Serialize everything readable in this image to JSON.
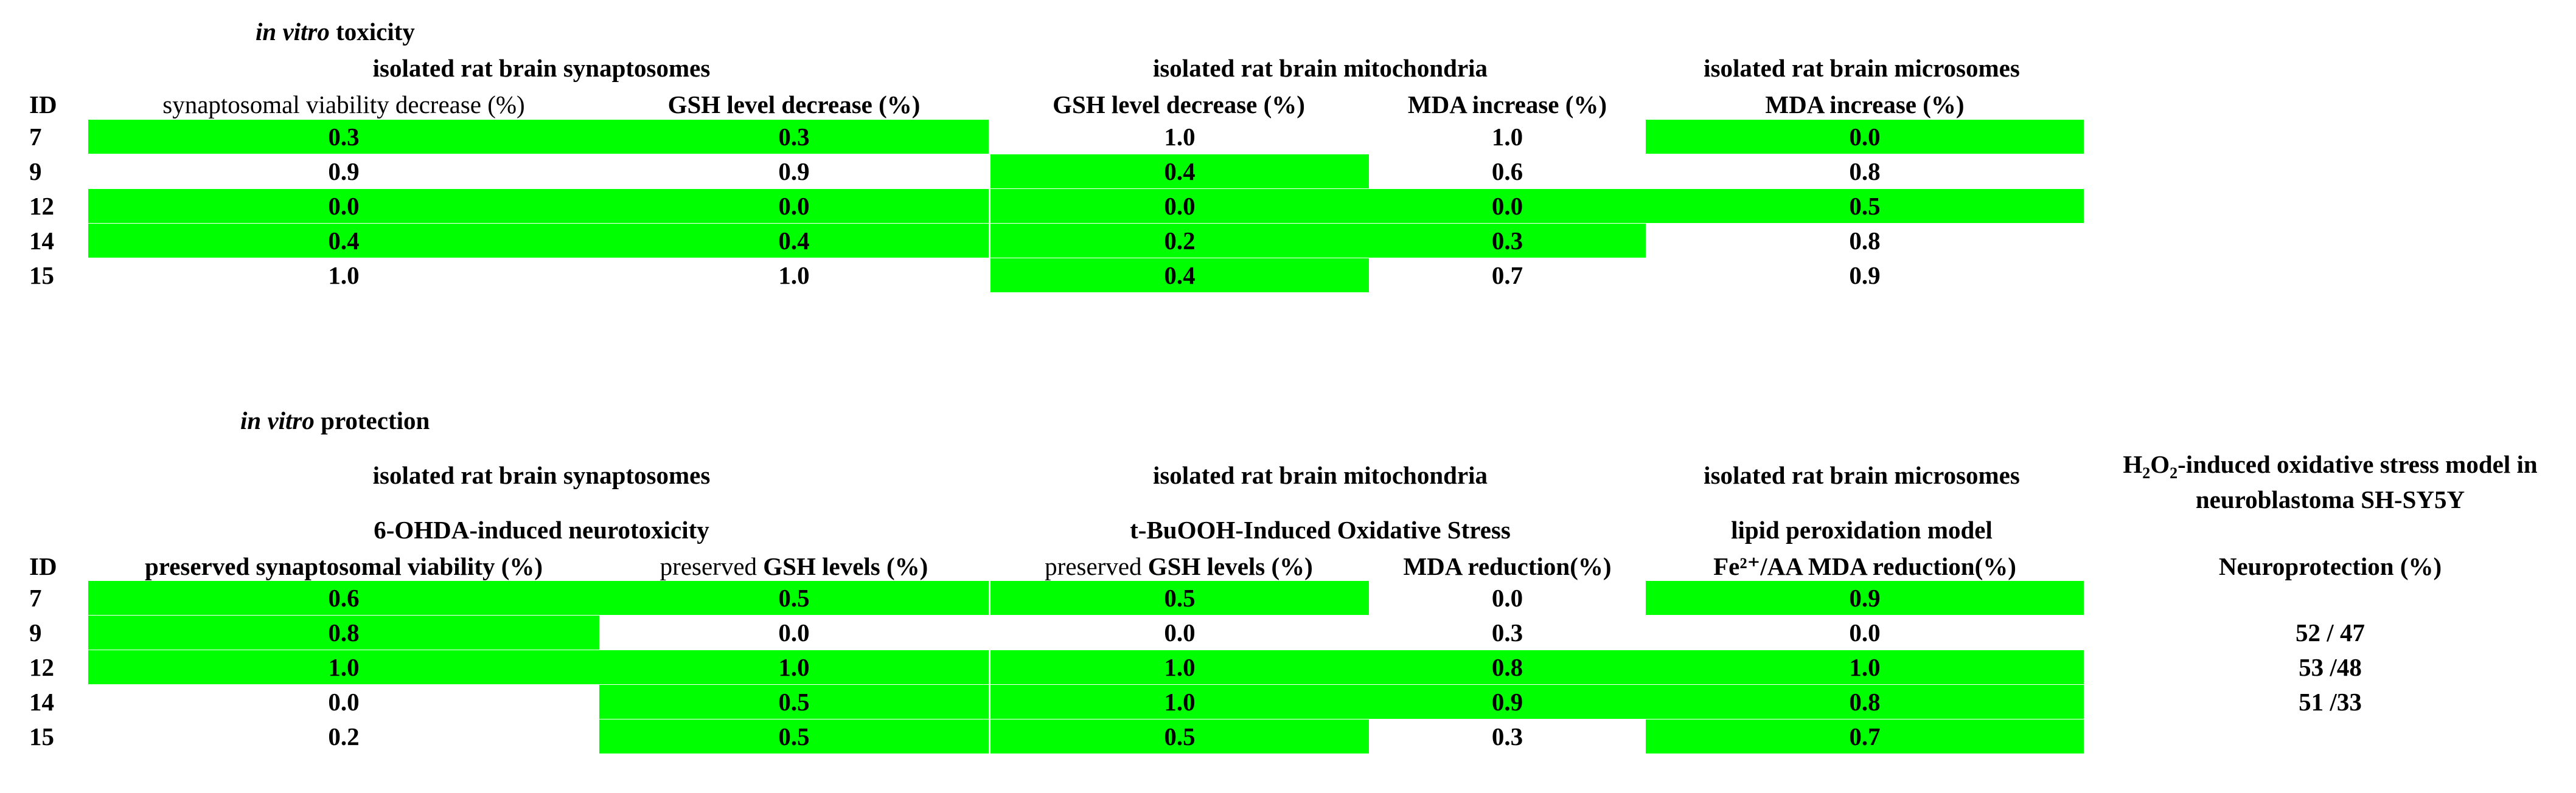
{
  "toxicity": {
    "title_italic": "in vitro",
    "title_rest": " toxicity",
    "groups": {
      "synaptosomes": "isolated rat brain synaptosomes",
      "mitochondria": "isolated rat brain mitochondria",
      "microsomes": "isolated rat brain microsomes"
    },
    "id_header": "ID",
    "columns": [
      "synaptosomal viability decrease  (%)",
      "GSH level decrease (%)",
      "GSH level decrease (%)",
      "MDA increase (%)",
      "MDA increase (%)"
    ],
    "rows": [
      {
        "id": "7",
        "values": [
          "0.3",
          "0.3",
          "1.0",
          "1.0",
          "0.0"
        ],
        "highlight": [
          true,
          true,
          false,
          false,
          true
        ]
      },
      {
        "id": "9",
        "values": [
          "0.9",
          "0.9",
          "0.4",
          "0.6",
          "0.8"
        ],
        "highlight": [
          false,
          false,
          true,
          false,
          false
        ]
      },
      {
        "id": "12",
        "values": [
          "0.0",
          "0.0",
          "0.0",
          "0.0",
          "0.5"
        ],
        "highlight": [
          true,
          true,
          true,
          true,
          true
        ]
      },
      {
        "id": "14",
        "values": [
          "0.4",
          "0.4",
          "0.2",
          "0.3",
          "0.8"
        ],
        "highlight": [
          true,
          true,
          true,
          true,
          false
        ]
      },
      {
        "id": "15",
        "values": [
          "1.0",
          "1.0",
          "0.4",
          "0.7",
          "0.9"
        ],
        "highlight": [
          false,
          false,
          true,
          false,
          false
        ]
      }
    ]
  },
  "protection": {
    "title_italic": "in vitro",
    "title_rest": " protection",
    "groups": {
      "synaptosomes": "isolated rat brain synaptosomes",
      "mitochondria": "isolated rat brain mitochondria",
      "microsomes": "isolated rat brain microsomes",
      "sh_sy5y_prefix": "H",
      "sh_sy5y_sub1": "2",
      "sh_sy5y_mid": "O",
      "sh_sy5y_sub2": "2",
      "sh_sy5y_rest": "-induced oxidative stress model in",
      "sh_sy5y_line2": "neuroblastoma SH-SY5Y"
    },
    "models": {
      "synaptosomes": "6-OHDA-induced neurotoxicity",
      "mitochondria": "t-BuOOH-Induced Oxidative Stress",
      "microsomes": "lipid peroxidation model"
    },
    "id_header": "ID",
    "columns": {
      "c1": "preserved synaptosomal viability (%)",
      "c2_plain": "preserved ",
      "c2_bold": "GSH levels (%)",
      "c3_plain": "preserved ",
      "c3_bold": "GSH levels (%)",
      "c4": "MDA reduction(%)",
      "c5": "Fe²⁺/AA MDA reduction(%)",
      "c6": "Neuroprotection (%)"
    },
    "rows": [
      {
        "id": "7",
        "values": [
          "0.6",
          "0.5",
          "0.5",
          "0.0",
          "0.9",
          ""
        ],
        "highlight": [
          true,
          true,
          true,
          false,
          true,
          false
        ]
      },
      {
        "id": "9",
        "values": [
          "0.8",
          "0.0",
          "0.0",
          "0.3",
          "0.0",
          "52 / 47"
        ],
        "highlight": [
          true,
          false,
          false,
          false,
          false,
          false
        ]
      },
      {
        "id": "12",
        "values": [
          "1.0",
          "1.0",
          "1.0",
          "0.8",
          "1.0",
          "53 /48"
        ],
        "highlight": [
          true,
          true,
          true,
          true,
          true,
          false
        ]
      },
      {
        "id": "14",
        "values": [
          "0.0",
          "0.5",
          "1.0",
          "0.9",
          "0.8",
          "51 /33"
        ],
        "highlight": [
          false,
          true,
          true,
          true,
          true,
          false
        ]
      },
      {
        "id": "15",
        "values": [
          "0.2",
          "0.5",
          "0.5",
          "0.3",
          "0.7",
          ""
        ],
        "highlight": [
          false,
          true,
          true,
          false,
          true,
          false
        ]
      }
    ]
  },
  "colors": {
    "highlight": "#00ff00"
  }
}
